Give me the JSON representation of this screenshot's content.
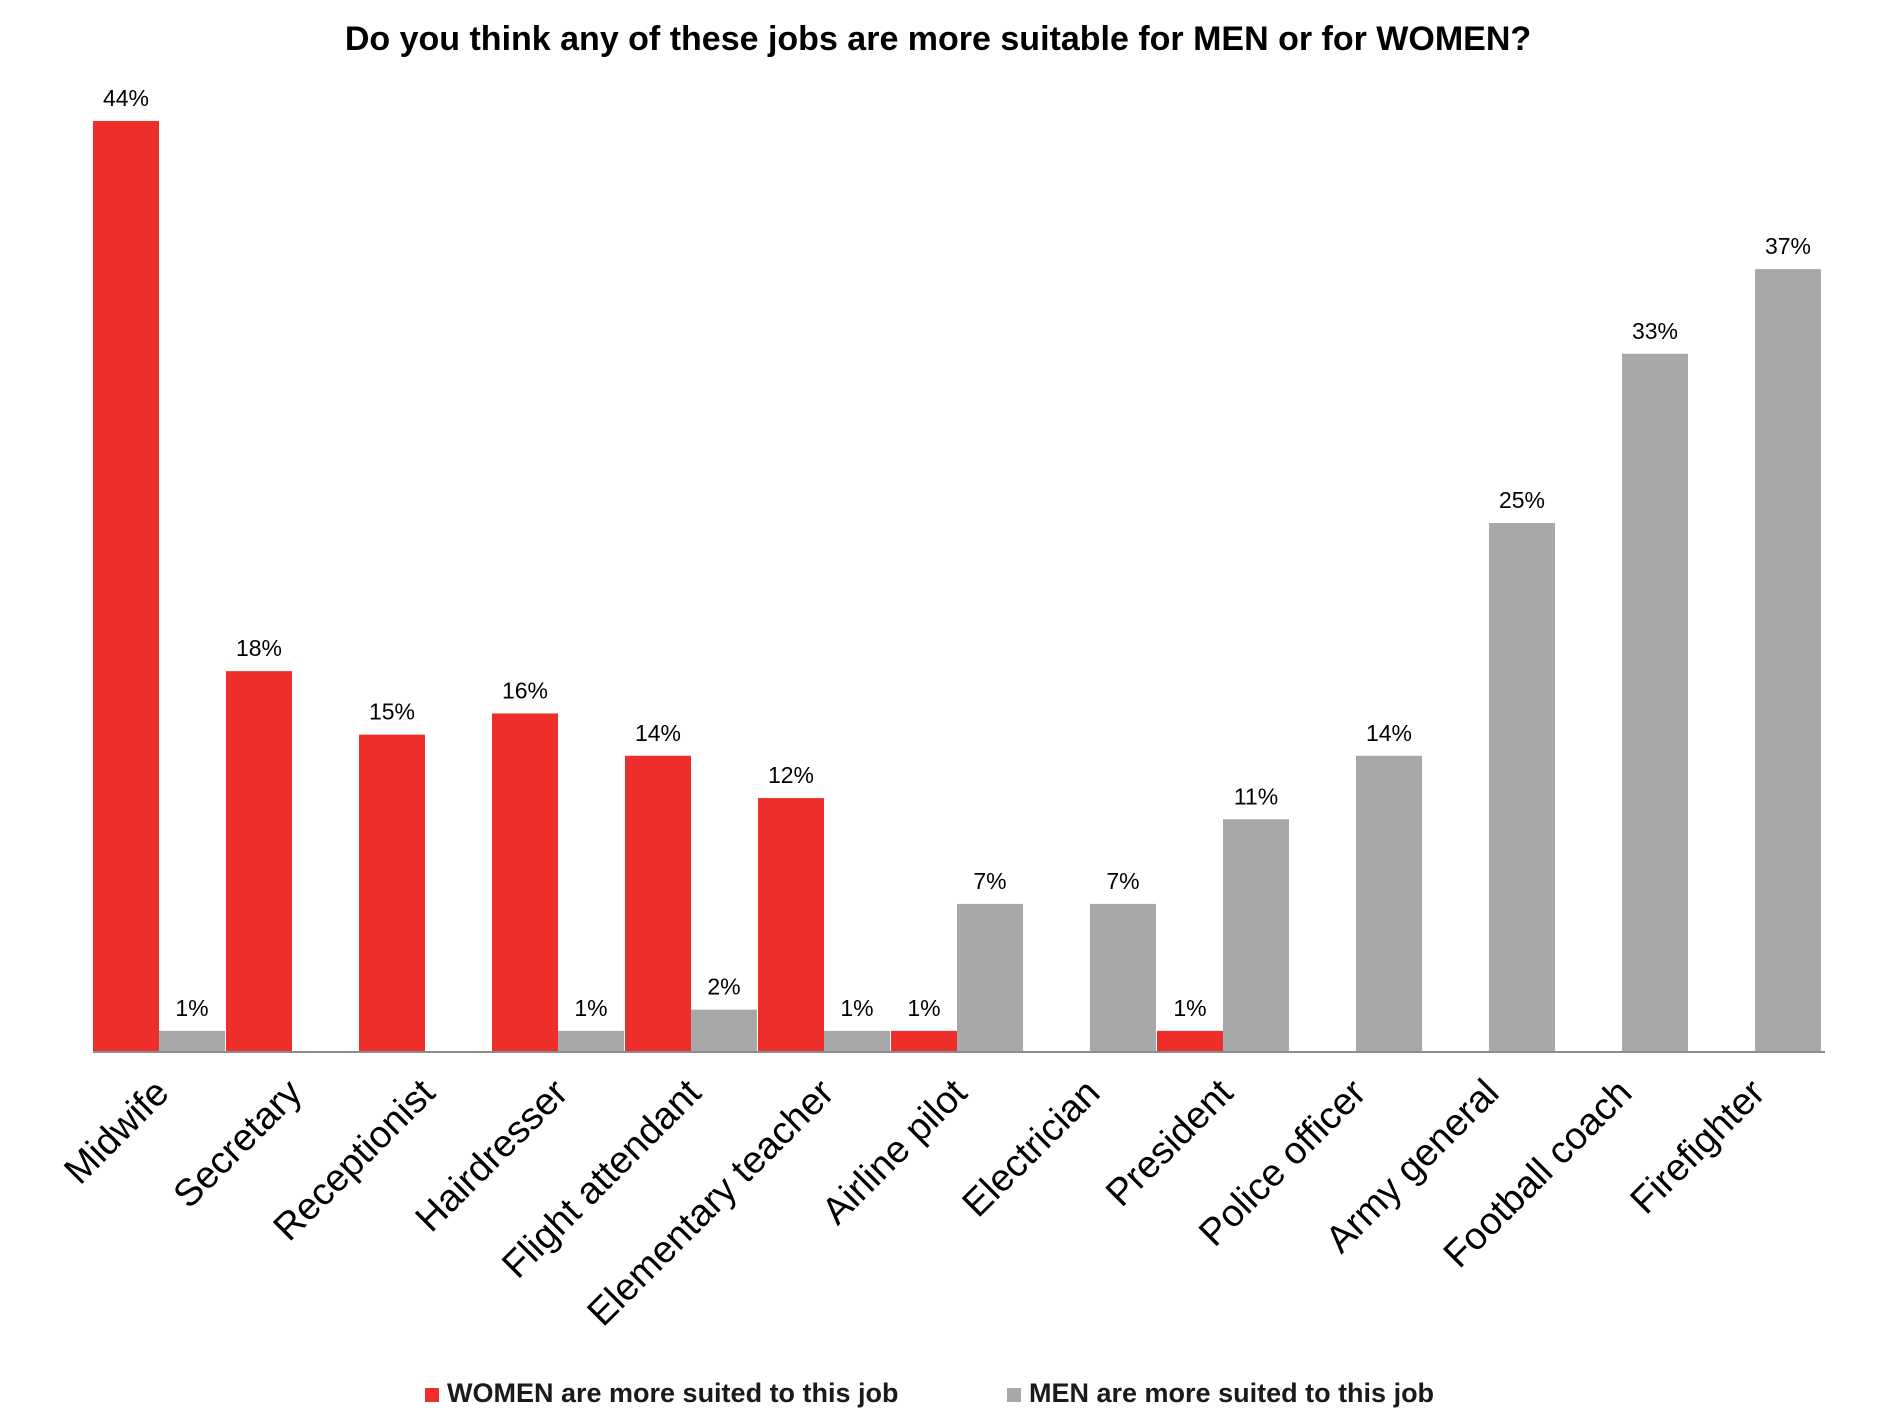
{
  "chart_data": {
    "type": "bar",
    "title": "Do you think any of these jobs are more suitable for MEN or for WOMEN?",
    "xlabel": "",
    "ylabel": "",
    "ylim": [
      0,
      45
    ],
    "grid": false,
    "legend_position": "bottom",
    "categories": [
      "Midwife",
      "Secretary",
      "Receptionist",
      "Hairdresser",
      "Flight attendant",
      "Elementary teacher",
      "Airline pilot",
      "Electrician",
      "President",
      "Police officer",
      "Army general",
      "Football coach",
      "Firefighter"
    ],
    "series": [
      {
        "name": "WOMEN are more suited to this job",
        "color": "#ee2e2a",
        "values": [
          44,
          18,
          15,
          16,
          14,
          12,
          1,
          null,
          1,
          null,
          null,
          null,
          null
        ],
        "labels": [
          "44%",
          "18%",
          "15%",
          "16%",
          "14%",
          "12%",
          "1%",
          "",
          "1%",
          "",
          "",
          "",
          ""
        ]
      },
      {
        "name": "MEN are more suited to this job",
        "color": "#a7a8aa",
        "values": [
          1,
          null,
          null,
          1,
          2,
          1,
          7,
          7,
          11,
          14,
          25,
          33,
          37
        ],
        "labels": [
          "1%",
          "",
          "",
          "1%",
          "2%",
          "1%",
          "7%",
          "7%",
          "11%",
          "14%",
          "25%",
          "33%",
          "37%"
        ]
      }
    ]
  }
}
